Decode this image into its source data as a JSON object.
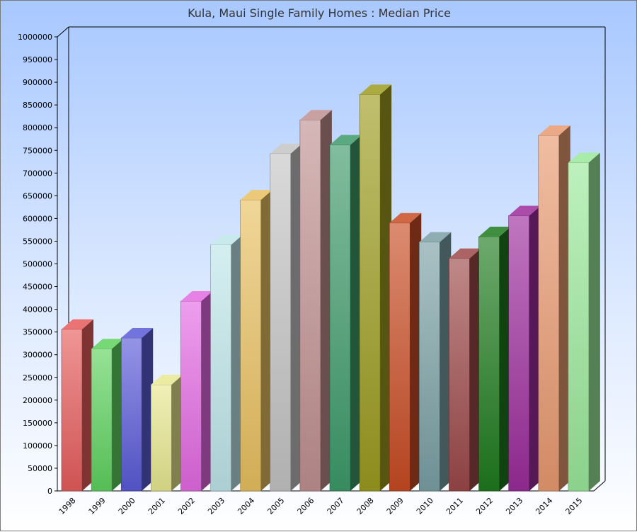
{
  "chart_data": {
    "type": "bar",
    "title": "Kula, Maui Single Family Homes : Median Price",
    "xlabel": "",
    "ylabel": "",
    "ylim": [
      0,
      1000000
    ],
    "y_ticks": [
      0,
      50000,
      100000,
      150000,
      200000,
      250000,
      300000,
      350000,
      400000,
      450000,
      500000,
      550000,
      600000,
      650000,
      700000,
      750000,
      800000,
      850000,
      900000,
      950000,
      1000000
    ],
    "categories": [
      "1998",
      "1999",
      "2000",
      "2001",
      "2002",
      "2003",
      "2004",
      "2005",
      "2006",
      "2007",
      "2008",
      "2009",
      "2010",
      "2011",
      "2012",
      "2013",
      "2014",
      "2015"
    ],
    "values": [
      356000,
      313000,
      337000,
      234000,
      418000,
      542000,
      641000,
      743000,
      817000,
      762000,
      873000,
      590000,
      548000,
      512000,
      560000,
      606000,
      783000,
      723000
    ],
    "colors": [
      "#e65c5c",
      "#5ed25e",
      "#5a5ad8",
      "#e8e890",
      "#e36ae3",
      "#bfe6ea",
      "#e8c060",
      "#c4c4c4",
      "#c09090",
      "#3d9a6a",
      "#9c9c20",
      "#c84c24",
      "#7aa0a4",
      "#9c4848",
      "#1e7a1e",
      "#9c2c9c",
      "#e89a70",
      "#9ae89a"
    ],
    "grid": false,
    "legend": "none"
  }
}
